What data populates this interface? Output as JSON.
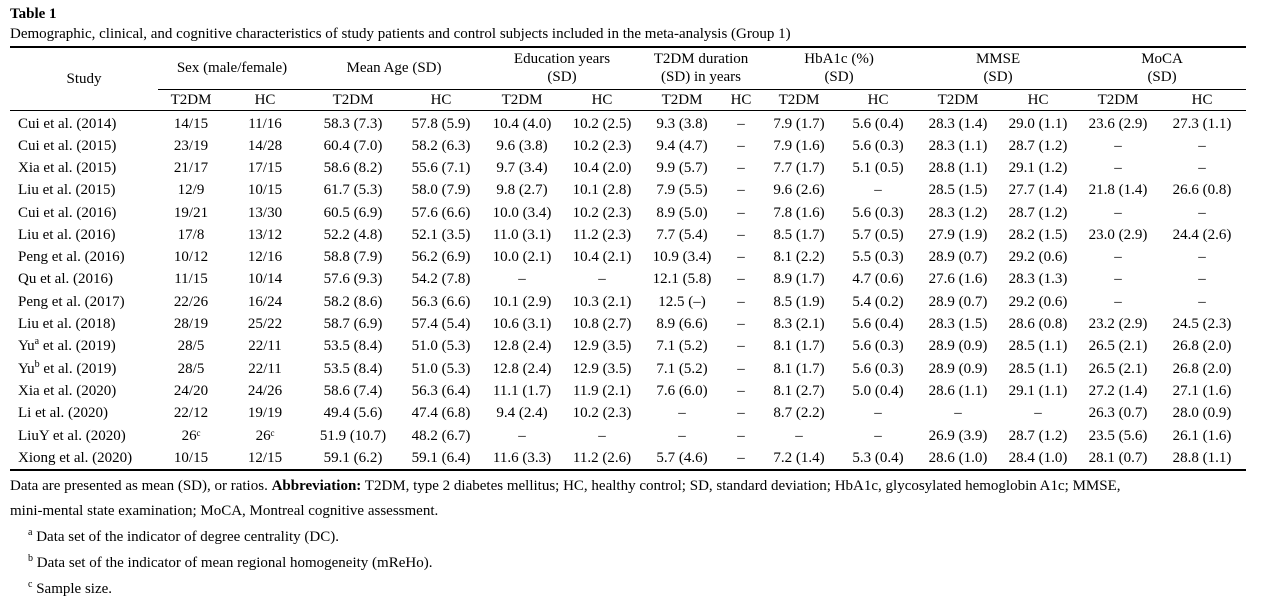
{
  "table_label": "Table 1",
  "caption": "Demographic, clinical, and cognitive characteristics of study patients and control subjects included in the meta-analysis (Group 1)",
  "header": {
    "study": "Study",
    "groups": [
      {
        "line1": "Sex (male/female)",
        "line2": ""
      },
      {
        "line1": "Mean Age (SD)",
        "line2": ""
      },
      {
        "line1": "Education years",
        "line2": "(SD)"
      },
      {
        "line1": "T2DM duration",
        "line2": "(SD) in years"
      },
      {
        "line1": "HbA1c (%)",
        "line2": "(SD)"
      },
      {
        "line1": "MMSE",
        "line2": "(SD)"
      },
      {
        "line1": "MoCA",
        "line2": "(SD)"
      }
    ],
    "subheaders": [
      "T2DM",
      "HC",
      "T2DM",
      "HC",
      "T2DM",
      "HC",
      "T2DM",
      "HC",
      "T2DM",
      "HC",
      "T2DM",
      "HC",
      "T2DM",
      "HC"
    ]
  },
  "rows": [
    {
      "study": "Cui et al. (2014)",
      "sup": "",
      "study_suffix": "",
      "cells": [
        "14/15",
        "11/16",
        "58.3 (7.3)",
        "57.8 (5.9)",
        "10.4 (4.0)",
        "10.2 (2.5)",
        "9.3 (3.8)",
        "–",
        "7.9 (1.7)",
        "5.6 (0.4)",
        "28.3 (1.4)",
        "29.0 (1.1)",
        "23.6 (2.9)",
        "27.3 (1.1)"
      ]
    },
    {
      "study": "Cui et al. (2015)",
      "sup": "",
      "study_suffix": "",
      "cells": [
        "23/19",
        "14/28",
        "60.4 (7.0)",
        "58.2 (6.3)",
        "9.6 (3.8)",
        "10.2 (2.3)",
        "9.4 (4.7)",
        "–",
        "7.9 (1.6)",
        "5.6 (0.3)",
        "28.3 (1.1)",
        "28.7 (1.2)",
        "–",
        "–"
      ]
    },
    {
      "study": "Xia et al. (2015)",
      "sup": "",
      "study_suffix": "",
      "cells": [
        "21/17",
        "17/15",
        "58.6 (8.2)",
        "55.6 (7.1)",
        "9.7 (3.4)",
        "10.4 (2.0)",
        "9.9 (5.7)",
        "–",
        "7.7 (1.7)",
        "5.1 (0.5)",
        "28.8 (1.1)",
        "29.1 (1.2)",
        "–",
        "–"
      ]
    },
    {
      "study": "Liu et al. (2015)",
      "sup": "",
      "study_suffix": "",
      "cells": [
        "12/9",
        "10/15",
        "61.7 (5.3)",
        "58.0 (7.9)",
        "9.8 (2.7)",
        "10.1 (2.8)",
        "7.9 (5.5)",
        "–",
        "9.6 (2.6)",
        "–",
        "28.5 (1.5)",
        "27.7 (1.4)",
        "21.8 (1.4)",
        "26.6 (0.8)"
      ]
    },
    {
      "study": "Cui et al. (2016)",
      "sup": "",
      "study_suffix": "",
      "cells": [
        "19/21",
        "13/30",
        "60.5 (6.9)",
        "57.6 (6.6)",
        "10.0 (3.4)",
        "10.2 (2.3)",
        "8.9 (5.0)",
        "–",
        "7.8 (1.6)",
        "5.6 (0.3)",
        "28.3 (1.2)",
        "28.7 (1.2)",
        "–",
        "–"
      ]
    },
    {
      "study": "Liu et al. (2016)",
      "sup": "",
      "study_suffix": "",
      "cells": [
        "17/8",
        "13/12",
        "52.2 (4.8)",
        "52.1 (3.5)",
        "11.0 (3.1)",
        "11.2 (2.3)",
        "7.7 (5.4)",
        "–",
        "8.5 (1.7)",
        "5.7 (0.5)",
        "27.9 (1.9)",
        "28.2 (1.5)",
        "23.0 (2.9)",
        "24.4 (2.6)"
      ]
    },
    {
      "study": "Peng et al. (2016)",
      "sup": "",
      "study_suffix": "",
      "cells": [
        "10/12",
        "12/16",
        "58.8 (7.9)",
        "56.2 (6.9)",
        "10.0 (2.1)",
        "10.4 (2.1)",
        "10.9 (3.4)",
        "–",
        "8.1 (2.2)",
        "5.5 (0.3)",
        "28.9 (0.7)",
        "29.2 (0.6)",
        "–",
        "–"
      ]
    },
    {
      "study": "Qu et al. (2016)",
      "sup": "",
      "study_suffix": "",
      "cells": [
        "11/15",
        "10/14",
        "57.6 (9.3)",
        "54.2 (7.8)",
        "–",
        "–",
        "12.1 (5.8)",
        "–",
        "8.9 (1.7)",
        "4.7 (0.6)",
        "27.6 (1.6)",
        "28.3 (1.3)",
        "–",
        "–"
      ]
    },
    {
      "study": "Peng et al. (2017)",
      "sup": "",
      "study_suffix": "",
      "cells": [
        "22/26",
        "16/24",
        "58.2 (8.6)",
        "56.3 (6.6)",
        "10.1 (2.9)",
        "10.3 (2.1)",
        "12.5 (–)",
        "–",
        "8.5 (1.9)",
        "5.4 (0.2)",
        "28.9 (0.7)",
        "29.2 (0.6)",
        "–",
        "–"
      ]
    },
    {
      "study": "Liu et al. (2018)",
      "sup": "",
      "study_suffix": "",
      "cells": [
        "28/19",
        "25/22",
        "58.7 (6.9)",
        "57.4 (5.4)",
        "10.6 (3.1)",
        "10.8 (2.7)",
        "8.9 (6.6)",
        "–",
        "8.3 (2.1)",
        "5.6 (0.4)",
        "28.3 (1.5)",
        "28.6 (0.8)",
        "23.2 (2.9)",
        "24.5 (2.3)"
      ]
    },
    {
      "study": "Yu",
      "sup": "a",
      "study_suffix": " et al. (2019)",
      "cells": [
        "28/5",
        "22/11",
        "53.5 (8.4)",
        "51.0 (5.3)",
        "12.8 (2.4)",
        "12.9 (3.5)",
        "7.1 (5.2)",
        "–",
        "8.1 (1.7)",
        "5.6 (0.3)",
        "28.9 (0.9)",
        "28.5 (1.1)",
        "26.5 (2.1)",
        "26.8 (2.0)"
      ]
    },
    {
      "study": "Yu",
      "sup": "b",
      "study_suffix": " et al. (2019)",
      "cells": [
        "28/5",
        "22/11",
        "53.5 (8.4)",
        "51.0 (5.3)",
        "12.8 (2.4)",
        "12.9 (3.5)",
        "7.1 (5.2)",
        "–",
        "8.1 (1.7)",
        "5.6 (0.3)",
        "28.9 (0.9)",
        "28.5 (1.1)",
        "26.5 (2.1)",
        "26.8 (2.0)"
      ]
    },
    {
      "study": "Xia et al. (2020)",
      "sup": "",
      "study_suffix": "",
      "cells": [
        "24/20",
        "24/26",
        "58.6 (7.4)",
        "56.3 (6.4)",
        "11.1 (1.7)",
        "11.9 (2.1)",
        "7.6 (6.0)",
        "–",
        "8.1 (2.7)",
        "5.0 (0.4)",
        "28.6 (1.1)",
        "29.1 (1.1)",
        "27.2 (1.4)",
        "27.1 (1.6)"
      ]
    },
    {
      "study": "Li et al. (2020)",
      "sup": "",
      "study_suffix": "",
      "cells": [
        "22/12",
        "19/19",
        "49.4 (5.6)",
        "47.4 (6.8)",
        "9.4 (2.4)",
        "10.2 (2.3)",
        "–",
        "–",
        "8.7 (2.2)",
        "–",
        "–",
        "–",
        "26.3 (0.7)",
        "28.0 (0.9)"
      ]
    },
    {
      "study": "LiuY et al. (2020)",
      "sup": "",
      "study_suffix": "",
      "cells": [
        "26ᶜ",
        "26ᶜ",
        "51.9 (10.7)",
        "48.2 (6.7)",
        "–",
        "–",
        "–",
        "–",
        "–",
        "–",
        "26.9 (3.9)",
        "28.7 (1.2)",
        "23.5 (5.6)",
        "26.1 (1.6)"
      ]
    },
    {
      "study": "Xiong et al. (2020)",
      "sup": "",
      "study_suffix": "",
      "cells": [
        "10/15",
        "12/15",
        "59.1 (6.2)",
        "59.1 (6.4)",
        "11.6 (3.3)",
        "11.2 (2.6)",
        "5.7 (4.6)",
        "–",
        "7.2 (1.4)",
        "5.3 (0.4)",
        "28.6 (1.0)",
        "28.4 (1.0)",
        "28.1 (0.7)",
        "28.8 (1.1)"
      ]
    }
  ],
  "notes": {
    "data_note": "Data are presented as mean (SD), or ratios.",
    "abbrev_label": "Abbreviation:",
    "abbrev_text_1": " T2DM, type 2 diabetes mellitus; HC, healthy control; SD, standard deviation; HbA1c, glycosylated hemoglobin A1c; MMSE,",
    "abbrev_text_2": "mini-mental state examination; MoCA, Montreal cognitive assessment.",
    "footnotes": [
      {
        "mark": "a",
        "text": " Data set of the indicator of degree centrality (DC)."
      },
      {
        "mark": "b",
        "text": " Data set of the indicator of mean regional homogeneity (mReHo)."
      },
      {
        "mark": "c",
        "text": " Sample size."
      }
    ]
  }
}
